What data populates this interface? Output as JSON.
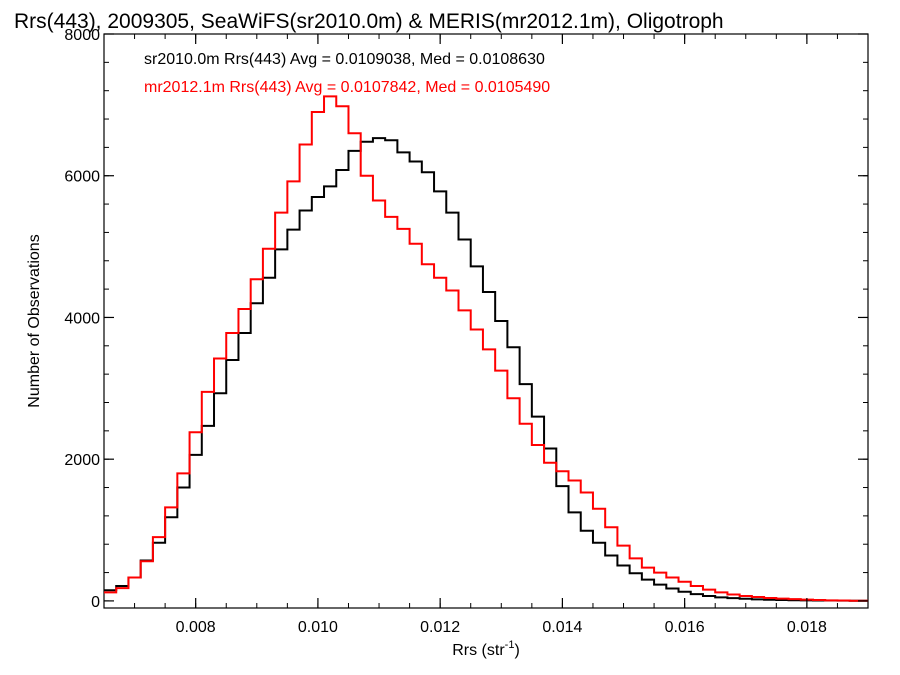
{
  "chart_data": {
    "type": "line",
    "step": true,
    "title": "Rrs(443), 2009305, SeaWiFS(sr2010.0m) & MERIS(mr2012.1m), Oligotroph",
    "xlabel": "Rrs (str",
    "xlabel_sup": "-1",
    "xlabel_suffix": ")",
    "ylabel": "Number of Observations",
    "xlim": [
      0.0065,
      0.019
    ],
    "ylim": [
      -100,
      8000
    ],
    "xticks": [
      0.008,
      0.01,
      0.012,
      0.014,
      0.016,
      0.018
    ],
    "xtick_labels": [
      "0.008",
      "0.010",
      "0.012",
      "0.014",
      "0.016",
      "0.018"
    ],
    "yticks": [
      0,
      2000,
      4000,
      6000,
      8000
    ],
    "ytick_labels": [
      "0",
      "2000",
      "4000",
      "6000",
      "8000"
    ],
    "grid": false,
    "legend_placement": "top-left",
    "series": [
      {
        "name": "sr2010.0m Rrs(443) Avg = 0.0109038, Med = 0.0108630",
        "color": "#000000",
        "points": [
          [
            0.0065,
            150
          ],
          [
            0.0067,
            210
          ],
          [
            0.0069,
            330
          ],
          [
            0.0071,
            570
          ],
          [
            0.0073,
            820
          ],
          [
            0.0075,
            1180
          ],
          [
            0.0077,
            1600
          ],
          [
            0.0079,
            2060
          ],
          [
            0.0081,
            2470
          ],
          [
            0.0083,
            2930
          ],
          [
            0.0085,
            3400
          ],
          [
            0.0087,
            3780
          ],
          [
            0.0089,
            4200
          ],
          [
            0.0091,
            4560
          ],
          [
            0.0093,
            4960
          ],
          [
            0.0095,
            5240
          ],
          [
            0.0097,
            5510
          ],
          [
            0.0099,
            5700
          ],
          [
            0.0101,
            5850
          ],
          [
            0.0103,
            6080
          ],
          [
            0.0105,
            6350
          ],
          [
            0.0107,
            6480
          ],
          [
            0.0109,
            6530
          ],
          [
            0.0111,
            6500
          ],
          [
            0.0113,
            6330
          ],
          [
            0.0115,
            6200
          ],
          [
            0.0117,
            6050
          ],
          [
            0.0119,
            5780
          ],
          [
            0.0121,
            5480
          ],
          [
            0.0123,
            5100
          ],
          [
            0.0125,
            4720
          ],
          [
            0.0127,
            4360
          ],
          [
            0.0129,
            3950
          ],
          [
            0.0131,
            3580
          ],
          [
            0.0133,
            3060
          ],
          [
            0.0135,
            2600
          ],
          [
            0.0137,
            2150
          ],
          [
            0.0139,
            1620
          ],
          [
            0.0141,
            1250
          ],
          [
            0.0143,
            990
          ],
          [
            0.0145,
            820
          ],
          [
            0.0147,
            640
          ],
          [
            0.0149,
            500
          ],
          [
            0.0151,
            390
          ],
          [
            0.0153,
            300
          ],
          [
            0.0155,
            230
          ],
          [
            0.0157,
            175
          ],
          [
            0.0159,
            130
          ],
          [
            0.0161,
            95
          ],
          [
            0.0163,
            70
          ],
          [
            0.0165,
            50
          ],
          [
            0.0167,
            40
          ],
          [
            0.0169,
            30
          ],
          [
            0.0171,
            22
          ],
          [
            0.0173,
            16
          ],
          [
            0.0175,
            12
          ],
          [
            0.0177,
            10
          ],
          [
            0.0179,
            8
          ],
          [
            0.0181,
            6
          ],
          [
            0.0183,
            5
          ],
          [
            0.0185,
            4
          ],
          [
            0.0187,
            3
          ],
          [
            0.019,
            2
          ]
        ]
      },
      {
        "name": "mr2012.1m Rrs(443) Avg = 0.0107842, Med = 0.0105490",
        "color": "#ff0000",
        "points": [
          [
            0.0065,
            120
          ],
          [
            0.0067,
            180
          ],
          [
            0.0069,
            330
          ],
          [
            0.0071,
            560
          ],
          [
            0.0073,
            900
          ],
          [
            0.0075,
            1320
          ],
          [
            0.0077,
            1800
          ],
          [
            0.0079,
            2380
          ],
          [
            0.0081,
            2950
          ],
          [
            0.0083,
            3420
          ],
          [
            0.0085,
            3780
          ],
          [
            0.0087,
            4120
          ],
          [
            0.0089,
            4540
          ],
          [
            0.0091,
            4970
          ],
          [
            0.0093,
            5480
          ],
          [
            0.0095,
            5920
          ],
          [
            0.0097,
            6440
          ],
          [
            0.0099,
            6900
          ],
          [
            0.0101,
            7120
          ],
          [
            0.0103,
            6980
          ],
          [
            0.0105,
            6600
          ],
          [
            0.0107,
            6000
          ],
          [
            0.0109,
            5650
          ],
          [
            0.0111,
            5420
          ],
          [
            0.0113,
            5250
          ],
          [
            0.0115,
            5040
          ],
          [
            0.0117,
            4750
          ],
          [
            0.0119,
            4560
          ],
          [
            0.0121,
            4380
          ],
          [
            0.0123,
            4100
          ],
          [
            0.0125,
            3830
          ],
          [
            0.0127,
            3550
          ],
          [
            0.0129,
            3250
          ],
          [
            0.0131,
            2860
          ],
          [
            0.0133,
            2500
          ],
          [
            0.0135,
            2200
          ],
          [
            0.0137,
            1950
          ],
          [
            0.0139,
            1830
          ],
          [
            0.0141,
            1700
          ],
          [
            0.0143,
            1530
          ],
          [
            0.0145,
            1300
          ],
          [
            0.0147,
            1040
          ],
          [
            0.0149,
            780
          ],
          [
            0.0151,
            600
          ],
          [
            0.0153,
            470
          ],
          [
            0.0155,
            400
          ],
          [
            0.0157,
            330
          ],
          [
            0.0159,
            270
          ],
          [
            0.0161,
            210
          ],
          [
            0.0163,
            160
          ],
          [
            0.0165,
            120
          ],
          [
            0.0167,
            90
          ],
          [
            0.0169,
            70
          ],
          [
            0.0171,
            55
          ],
          [
            0.0173,
            42
          ],
          [
            0.0175,
            32
          ],
          [
            0.0177,
            25
          ],
          [
            0.0179,
            18
          ],
          [
            0.0181,
            12
          ],
          [
            0.0183,
            8
          ],
          [
            0.0185,
            5
          ],
          [
            0.0187,
            3
          ],
          [
            0.019,
            2
          ]
        ]
      }
    ]
  }
}
